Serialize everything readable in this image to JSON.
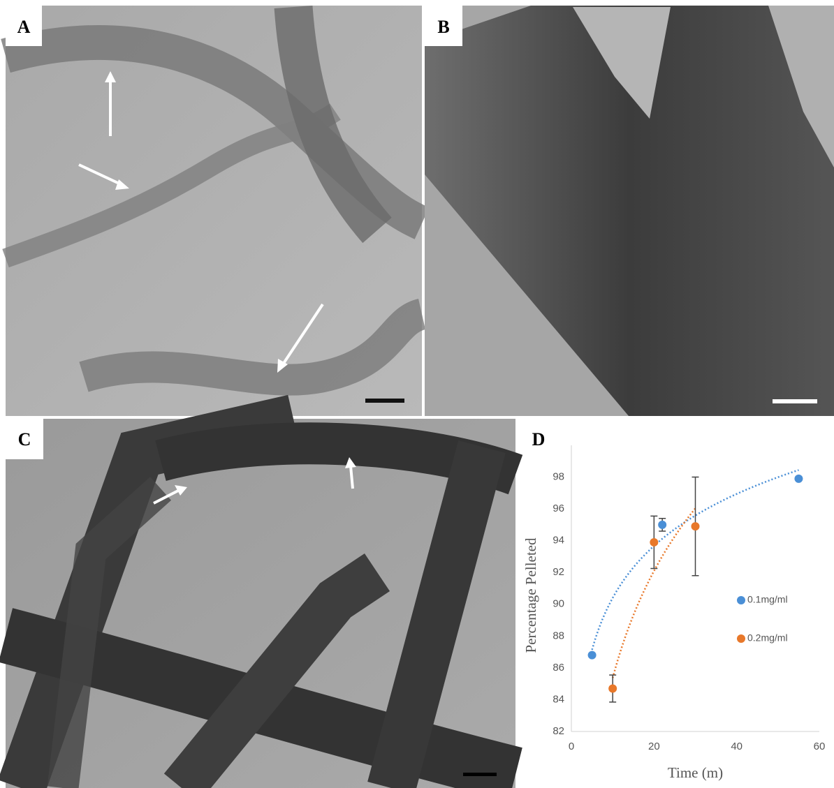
{
  "panel_labels": [
    "A",
    "B",
    "C",
    "D"
  ],
  "chart_data": {
    "type": "scatter",
    "xlabel": "Time (m)",
    "ylabel": "Percentage Pelleted",
    "xlim": [
      0,
      60
    ],
    "xticks": [
      0,
      20,
      40,
      60
    ],
    "ylim": [
      82,
      100
    ],
    "yticks": [
      82,
      84,
      86,
      88,
      90,
      92,
      94,
      96,
      98
    ],
    "trendline": "log",
    "legend": "right",
    "series": [
      {
        "name": "0.1mg/ml",
        "color": "#4a8fd6",
        "x": [
          5,
          22,
          55
        ],
        "values": [
          86.8,
          95,
          97.9
        ],
        "errors": [
          null,
          0.4,
          null
        ]
      },
      {
        "name": "0.2mg/ml",
        "color": "#e8782a",
        "x": [
          10,
          20,
          30
        ],
        "values": [
          84.7,
          93.9,
          94.9
        ],
        "errors": [
          0.85,
          1.65,
          3.1
        ]
      }
    ]
  }
}
